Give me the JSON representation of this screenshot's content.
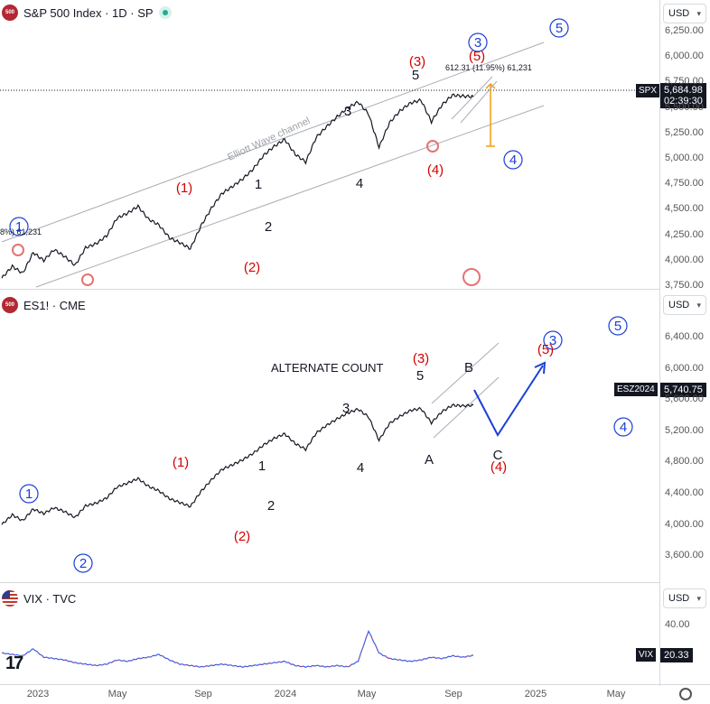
{
  "panes": {
    "top": {
      "legend": {
        "badge": "500",
        "title": "S&P 500 Index · 1D · SP"
      },
      "currency": "USD",
      "ticker": "SPX",
      "price": "5,684.98",
      "countdown": "02:39:30",
      "measure_label": "612.31 (11.95%) 61,231",
      "edge_label": "8%) 61,231",
      "channel_label": "Elliott Wave channel"
    },
    "middle": {
      "legend": {
        "badge": "500",
        "title": "ES1! · CME"
      },
      "currency": "USD",
      "ticker": "ESZ2024",
      "price": "5,740.75",
      "alt_label": "ALTERNATE COUNT"
    },
    "bottom": {
      "legend": {
        "title": "VIX · TVC"
      },
      "currency": "USD",
      "ticker": "VIX",
      "price": "20.33"
    }
  },
  "axes": {
    "top_ticks": [
      "6,250.00",
      "6,000.00",
      "5,750.00",
      "5,500.00",
      "5,250.00",
      "5,000.00",
      "4,750.00",
      "4,500.00",
      "4,250.00",
      "4,000.00",
      "3,750.00"
    ],
    "middle_ticks": [
      "6,400.00",
      "6,000.00",
      "5,600.00",
      "5,200.00",
      "4,800.00",
      "4,400.00",
      "4,000.00",
      "3,600.00"
    ],
    "bottom_ticks": [
      "40.00"
    ],
    "x_ticks": [
      "2023",
      "May",
      "Sep",
      "2024",
      "May",
      "Sep",
      "2025",
      "May"
    ]
  },
  "chart_data": [
    {
      "type": "line",
      "series": [
        {
          "name": "SPX",
          "y": [
            3840,
            3960,
            3890,
            4100,
            4020,
            4130,
            4060,
            3970,
            4150,
            4190,
            4270,
            4450,
            4500,
            4570,
            4440,
            4380,
            4250,
            4200,
            4140,
            4370,
            4550,
            4700,
            4770,
            4850,
            4950,
            5090,
            5180,
            5250,
            5100,
            5020,
            5270,
            5380,
            5480,
            5570,
            5630,
            5510,
            5170,
            5420,
            5540,
            5620,
            5650,
            5430,
            5600,
            5700,
            5690,
            5685
          ]
        }
      ],
      "waves": {
        "green_circled": [
          "1",
          "3",
          "5",
          "4"
        ],
        "red_parenthesized": [
          "(1)",
          "(2)",
          "(3)",
          "(4)",
          "(5)"
        ],
        "black_minor": [
          "1",
          "2",
          "3",
          "4",
          "5"
        ]
      },
      "ylim": [
        3750,
        6300
      ]
    },
    {
      "type": "line",
      "series": [
        {
          "name": "ES1!",
          "y": [
            3900,
            4050,
            3960,
            4140,
            4070,
            4160,
            4100,
            4010,
            4190,
            4230,
            4310,
            4480,
            4540,
            4610,
            4490,
            4420,
            4300,
            4240,
            4180,
            4410,
            4590,
            4750,
            4820,
            4900,
            5000,
            5130,
            5230,
            5300,
            5150,
            5060,
            5310,
            5430,
            5530,
            5620,
            5680,
            5560,
            5200,
            5460,
            5570,
            5660,
            5690,
            5470,
            5640,
            5740,
            5730,
            5741
          ]
        }
      ],
      "waves": {
        "blue_circled": [
          "1",
          "2",
          "3",
          "5",
          "4"
        ],
        "red_parenthesized": [
          "(1)",
          "(2)",
          "(3)",
          "(4)",
          "(5)"
        ],
        "black_minor": [
          "1",
          "2",
          "3",
          "4",
          "5",
          "A",
          "B",
          "C"
        ]
      },
      "ylim": [
        3500,
        6700
      ]
    },
    {
      "type": "line",
      "series": [
        {
          "name": "VIX",
          "y": [
            22,
            21,
            20,
            25,
            19,
            18,
            17,
            15,
            14,
            13,
            14,
            17,
            16,
            18,
            19,
            21,
            17,
            14,
            13,
            12,
            13,
            14,
            13,
            12,
            13,
            14,
            15,
            16,
            13,
            12,
            13,
            12,
            13,
            12,
            16,
            38,
            22,
            18,
            17,
            16,
            17,
            19,
            18,
            20,
            19,
            20.33
          ]
        }
      ],
      "ylim": [
        10,
        60
      ]
    }
  ]
}
